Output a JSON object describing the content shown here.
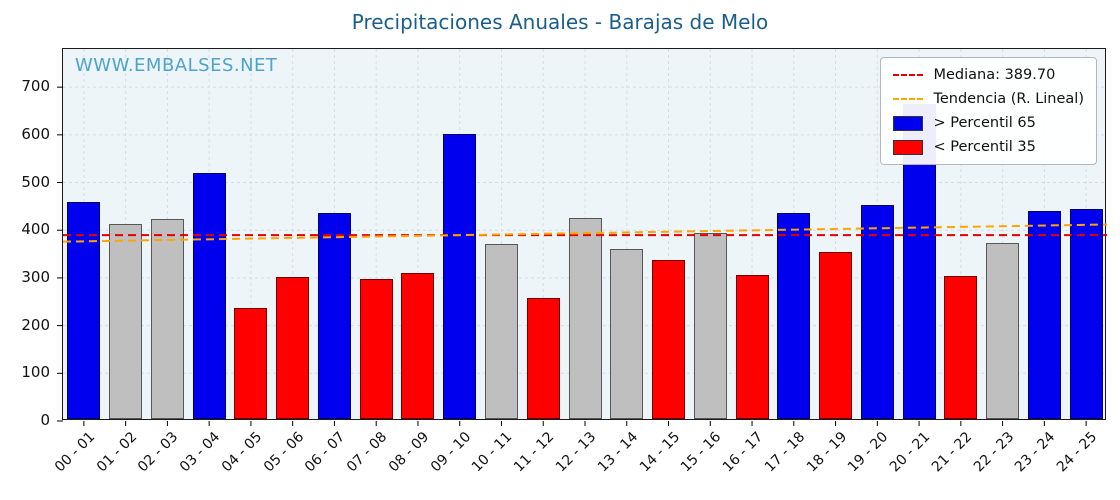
{
  "chart_data": {
    "type": "bar",
    "title": "Precipitaciones Anuales - Barajas de Melo",
    "watermark": "WWW.EMBALSES.NET",
    "categories": [
      "00 - 01",
      "01 - 02",
      "02 - 03",
      "03 - 04",
      "04 - 05",
      "05 - 06",
      "06 - 07",
      "07 - 08",
      "08 - 09",
      "09 - 10",
      "10 - 11",
      "11 - 12",
      "12 - 13",
      "13 - 14",
      "14 - 15",
      "15 - 16",
      "16 - 17",
      "17 - 18",
      "18 - 19",
      "19 - 20",
      "20 - 21",
      "21 - 22",
      "22 - 23",
      "23 - 24",
      "24 - 25"
    ],
    "values": [
      455,
      408,
      420,
      515,
      232,
      297,
      432,
      293,
      306,
      598,
      367,
      253,
      421,
      357,
      333,
      390,
      301,
      433,
      350,
      448,
      660,
      299,
      369,
      437,
      441
    ],
    "bar_classes": [
      "p65",
      "mid",
      "mid",
      "p65",
      "p35",
      "p35",
      "p65",
      "p35",
      "p35",
      "p65",
      "mid",
      "p35",
      "mid",
      "mid",
      "p35",
      "mid",
      "p35",
      "p65",
      "p35",
      "p65",
      "p65",
      "p35",
      "mid",
      "p65",
      "p65"
    ],
    "median": 389.7,
    "trend_start": 376,
    "trend_end": 412,
    "ylim": [
      0,
      780
    ],
    "yticks": [
      0,
      100,
      200,
      300,
      400,
      500,
      600,
      700
    ],
    "grid": "on",
    "xlabel": "",
    "ylabel": "",
    "colors": {
      "p65": "#0000ee",
      "p35": "#ff0000",
      "mid": "#bfbfbf",
      "median_line": "#e30000",
      "trend_line": "#ffa400",
      "title": "#1a5f8a",
      "watermark": "#4da3cc",
      "plot_background": "#edf5f9"
    },
    "legend": {
      "position": "top-right",
      "items": [
        {
          "label": "Mediana: 389.70",
          "type": "dashed-line",
          "color": "#e30000"
        },
        {
          "label": "Tendencia (R. Lineal)",
          "type": "dashed-line",
          "color": "#ffa400"
        },
        {
          "label": "> Percentil 65",
          "type": "patch",
          "color": "#0000ee"
        },
        {
          "label": "< Percentil 35",
          "type": "patch",
          "color": "#ff0000"
        }
      ]
    }
  }
}
